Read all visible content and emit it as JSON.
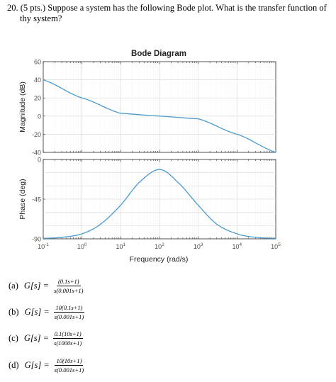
{
  "question": {
    "line1": "20. (5 pts.) Suppose a system has the following Bode plot.  What is the transfer function of",
    "line2": "thy system?"
  },
  "chart_data": {
    "type": "line",
    "title": "Bode Diagram",
    "xlabel": "Frequency (rad/s)",
    "xscale": "log",
    "xlim": [
      0.1,
      100000
    ],
    "x_tick_labels": [
      {
        "base": "10",
        "exp": "-1"
      },
      {
        "base": "10",
        "exp": "0"
      },
      {
        "base": "10",
        "exp": "1"
      },
      {
        "base": "10",
        "exp": "2"
      },
      {
        "base": "10",
        "exp": "3"
      },
      {
        "base": "10",
        "exp": "4"
      },
      {
        "base": "10",
        "exp": "5"
      }
    ],
    "grid": true,
    "line_color": "#4a9bd0",
    "magnitude": {
      "ylabel": "Magnitude (dB)",
      "ylim": [
        -40,
        60
      ],
      "yticks": [
        "60",
        "40",
        "20",
        "0",
        "-20",
        "-40"
      ],
      "x": [
        0.1,
        1,
        10,
        100,
        1000,
        10000,
        100000
      ],
      "y": [
        40,
        20,
        3,
        0,
        -3,
        -20,
        -40
      ]
    },
    "phase": {
      "ylabel": "Phase (deg)",
      "ylim": [
        -90,
        0
      ],
      "yticks": [
        "0",
        "-45",
        "-90"
      ],
      "x": [
        0.1,
        0.3,
        1,
        3,
        10,
        30,
        100,
        300,
        1000,
        3000,
        10000,
        30000,
        100000
      ],
      "y": [
        -89.4,
        -88.3,
        -84.3,
        -73.4,
        -51.8,
        -26,
        -11.4,
        -26,
        -51.8,
        -73.4,
        -84.3,
        -88.3,
        -89.4
      ]
    }
  },
  "options": [
    {
      "label": "(a)",
      "g": "G[s] =",
      "num": "(0.1s+1)",
      "den": "s(0.001s+1)"
    },
    {
      "label": "(b)",
      "g": "G[s] =",
      "num": "10(0.1s+1)",
      "den": "s(0.001s+1)"
    },
    {
      "label": "(c)",
      "g": "G[s] =",
      "num": "0.1(10s+1)",
      "den": "s(1000s+1)"
    },
    {
      "label": "(d)",
      "g": "G[s] =",
      "num": "10(10s+1)",
      "den": "s(0.001s+1)"
    }
  ]
}
